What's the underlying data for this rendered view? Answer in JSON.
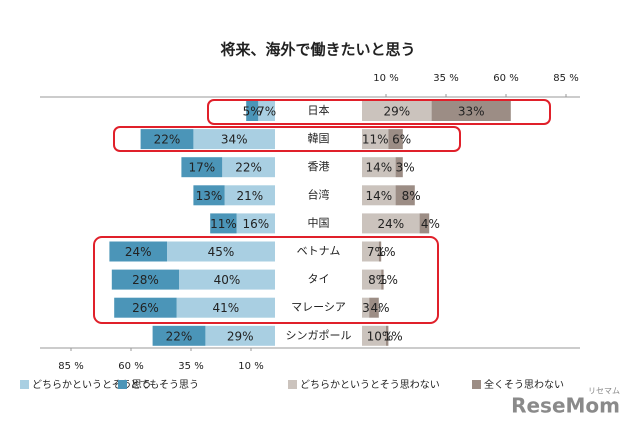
{
  "chart_data": {
    "type": "diverging_bar",
    "title": "将来、海外で働きたいと思う",
    "categories": [
      "日本",
      "韓国",
      "香港",
      "台湾",
      "中国",
      "ベトナム",
      "タイ",
      "マレーシア",
      "シンガポール"
    ],
    "xlim": [
      0,
      95
    ],
    "xticks": [
      {
        "value": 10,
        "label": "10 %"
      },
      {
        "value": 35,
        "label": "35 %"
      },
      {
        "value": 60,
        "label": "60 %"
      },
      {
        "value": 85,
        "label": "85 %"
      }
    ],
    "series": [
      {
        "name": "どちらかというとそう思う",
        "color": "#a9cfe2",
        "side": "left",
        "values": [
          7,
          34,
          22,
          21,
          16,
          45,
          40,
          41,
          29
        ],
        "value_labels": [
          "7%",
          "34%",
          "22%",
          "21%",
          "16%",
          "45%",
          "40%",
          "41%",
          "29%"
        ]
      },
      {
        "name": "とてもそう思う",
        "color": "#4b95b8",
        "side": "left",
        "values": [
          5,
          22,
          17,
          13,
          11,
          24,
          28,
          26,
          22
        ],
        "value_labels": [
          "5%",
          "22%",
          "17%",
          "13%",
          "11%",
          "24%",
          "28%",
          "26%",
          "22%"
        ]
      },
      {
        "name": "どちらかというとそう思わない",
        "color": "#cbc3bd",
        "side": "right",
        "values": [
          29,
          11,
          14,
          14,
          24,
          7,
          8,
          3,
          10
        ],
        "value_labels": [
          "29%",
          "11%",
          "14%",
          "14%",
          "24%",
          "7%",
          "8%",
          "3%",
          "10%"
        ]
      },
      {
        "name": "全くそう思わない",
        "color": "#9c8d85",
        "side": "right",
        "values": [
          33,
          6,
          3,
          8,
          4,
          1,
          1,
          4,
          1
        ],
        "value_labels": [
          "33%",
          "6%",
          "3%",
          "8%",
          "4%",
          "1%",
          "1%",
          "4%",
          "1%"
        ]
      }
    ],
    "watermark": "ReseMom",
    "watermark_kana": "リセマム"
  }
}
